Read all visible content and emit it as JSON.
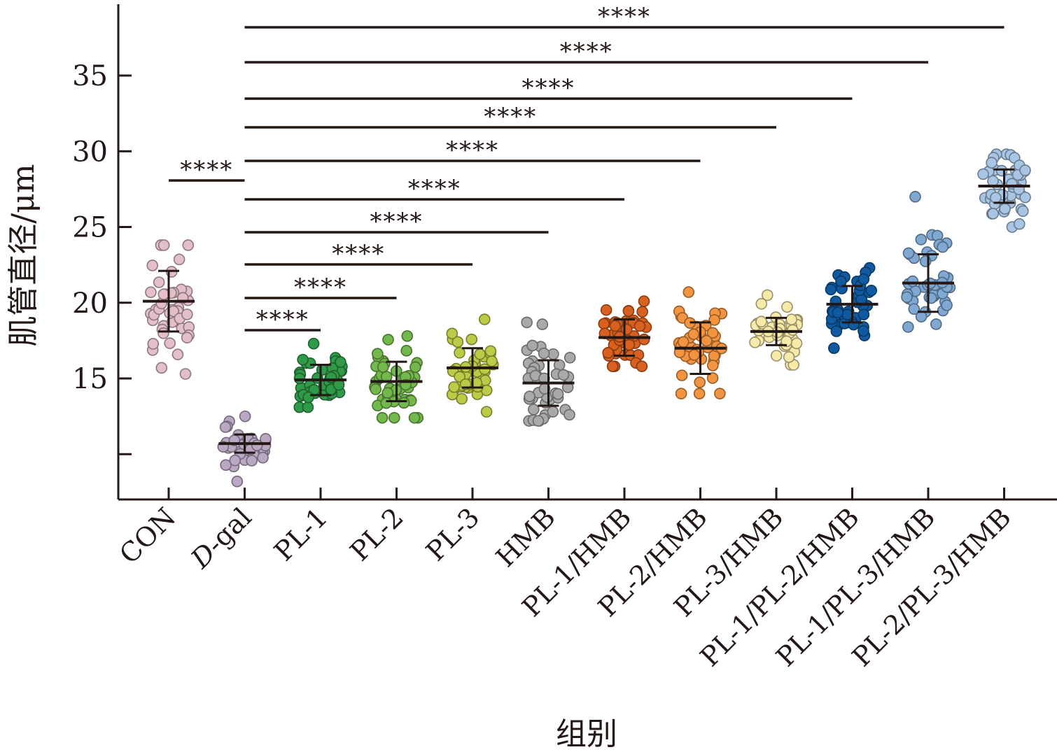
{
  "chart_data": {
    "type": "scatter",
    "subtype": "dot-plot-mean-sd",
    "ylabel": "肌管直径/μm",
    "xlabel": "组别",
    "ylim": [
      7.3,
      38.5
    ],
    "yticks": [
      10,
      15,
      20,
      25,
      30,
      35
    ],
    "ytick_labels": [
      "",
      "15",
      "20",
      "25",
      "30",
      "35"
    ],
    "grid": false,
    "legend": "none",
    "categories": [
      "CON",
      "D-gal",
      "PL-1",
      "PL-2",
      "PL-3",
      "HMB",
      "PL-1/HMB",
      "PL-2/HMB",
      "PL-3/HMB",
      "PL-1/PL-2/HMB",
      "PL-1/PL-3/HMB",
      "PL-2/PL-3/HMB"
    ],
    "series": [
      {
        "category": "CON",
        "color": "#e3bfc9",
        "mean": 20.1,
        "sd": 2.0,
        "min": 15.3,
        "max": 23.8
      },
      {
        "category": "D-gal",
        "color": "#b9a7c3",
        "mean": 10.7,
        "sd": 0.6,
        "min": 8.2,
        "max": 12.5
      },
      {
        "category": "PL-1",
        "color": "#2f9a48",
        "mean": 14.9,
        "sd": 1.0,
        "min": 13.1,
        "max": 17.3
      },
      {
        "category": "PL-2",
        "color": "#73b84c",
        "mean": 14.8,
        "sd": 1.3,
        "min": 12.4,
        "max": 17.8
      },
      {
        "category": "PL-3",
        "color": "#bccb45",
        "mean": 15.7,
        "sd": 1.3,
        "min": 12.8,
        "max": 18.9
      },
      {
        "category": "HMB",
        "color": "#a9a9a9",
        "mean": 14.7,
        "sd": 1.5,
        "min": 12.2,
        "max": 18.7
      },
      {
        "category": "PL-1/HMB",
        "color": "#d9601f",
        "mean": 17.7,
        "sd": 1.2,
        "min": 15.8,
        "max": 20.1
      },
      {
        "category": "PL-2/HMB",
        "color": "#f29440",
        "mean": 17.0,
        "sd": 1.7,
        "min": 14.0,
        "max": 20.7
      },
      {
        "category": "PL-3/HMB",
        "color": "#f7e9a8",
        "mean": 18.1,
        "sd": 0.9,
        "min": 15.9,
        "max": 20.5
      },
      {
        "category": "PL-1/PL-2/HMB",
        "color": "#0f5aa0",
        "mean": 19.9,
        "sd": 1.2,
        "min": 17.0,
        "max": 22.3
      },
      {
        "category": "PL-1/PL-3/HMB",
        "color": "#7fa9d3",
        "mean": 21.3,
        "sd": 1.9,
        "min": 18.4,
        "max": 27.0
      },
      {
        "category": "PL-2/PL-3/HMB",
        "color": "#a8c6e4",
        "mean": 27.7,
        "sd": 1.1,
        "min": 25.0,
        "max": 29.8
      }
    ],
    "significance": [
      {
        "from": "CON",
        "to": "D-gal",
        "label": "****"
      },
      {
        "from": "D-gal",
        "to": "PL-1",
        "label": "****"
      },
      {
        "from": "D-gal",
        "to": "PL-2",
        "label": "****"
      },
      {
        "from": "D-gal",
        "to": "PL-3",
        "label": "****"
      },
      {
        "from": "D-gal",
        "to": "HMB",
        "label": "****"
      },
      {
        "from": "D-gal",
        "to": "PL-1/HMB",
        "label": "****"
      },
      {
        "from": "D-gal",
        "to": "PL-2/HMB",
        "label": "****"
      },
      {
        "from": "D-gal",
        "to": "PL-3/HMB",
        "label": "****"
      },
      {
        "from": "D-gal",
        "to": "PL-1/PL-2/HMB",
        "label": "****"
      },
      {
        "from": "D-gal",
        "to": "PL-1/PL-3/HMB",
        "label": "****"
      },
      {
        "from": "D-gal",
        "to": "PL-2/PL-3/HMB",
        "label": "****"
      }
    ]
  }
}
